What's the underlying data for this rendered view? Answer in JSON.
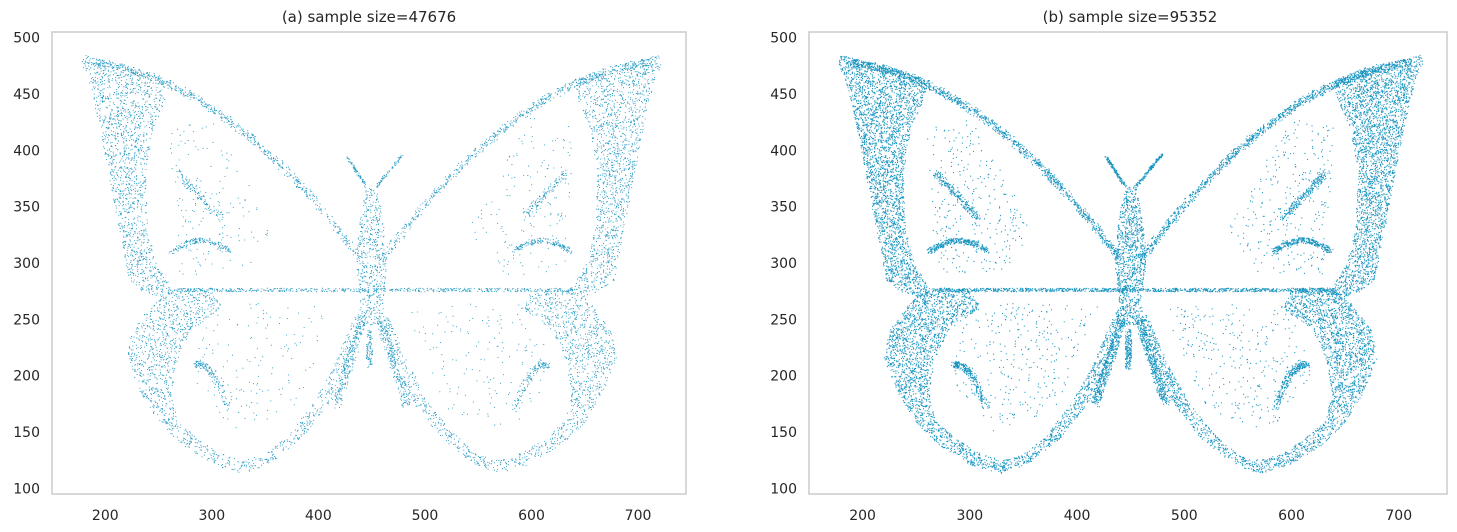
{
  "chart_data": [
    {
      "type": "scatter",
      "title": "(a) sample size=47676",
      "xlabel": "",
      "ylabel": "",
      "xlim": [
        150,
        745
      ],
      "ylim": [
        95,
        505
      ],
      "xticks": [
        200,
        300,
        400,
        500,
        600,
        700
      ],
      "yticks": [
        100,
        150,
        200,
        250,
        300,
        350,
        400,
        450,
        500
      ],
      "grid": false,
      "marker_color": "#0d8fbd",
      "sample_size": 47676,
      "density": "lighter",
      "shape": "butterfly point cloud: upper wings from about x=175-720, y=260-490; lower wings down to about y=112 near x=330 and x=570; body centered near x=450 spanning y=245-395; horizontal vein at y≈276 from x≈265 to x≈640"
    },
    {
      "type": "scatter",
      "title": "(b) sample size=95352",
      "xlabel": "",
      "ylabel": "",
      "xlim": [
        150,
        745
      ],
      "ylim": [
        95,
        505
      ],
      "xticks": [
        200,
        300,
        400,
        500,
        600,
        700
      ],
      "yticks": [
        100,
        150,
        200,
        250,
        300,
        350,
        400,
        450,
        500
      ],
      "grid": false,
      "marker_color": "#0d8fbd",
      "sample_size": 95352,
      "density": "denser",
      "shape": "same butterfly point cloud as panel (a), sampled at twice the size"
    }
  ]
}
